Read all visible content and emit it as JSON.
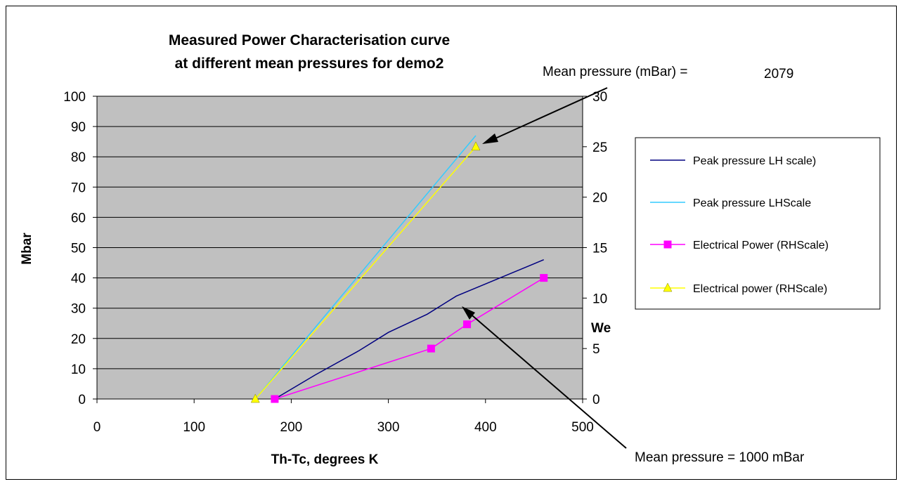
{
  "chart_data": {
    "type": "line",
    "title_lines": [
      "Measured Power Characterisation curve",
      "at different mean pressures for demo2"
    ],
    "xlabel": "Th-Tc, degrees K",
    "ylabel": "Mbar",
    "y2label": "We",
    "xlim": [
      0,
      500
    ],
    "ylim": [
      0,
      100
    ],
    "y2lim": [
      0,
      30
    ],
    "x_ticks": [
      "0",
      "100",
      "200",
      "300",
      "400",
      "500"
    ],
    "y_ticks": [
      "0",
      "10",
      "20",
      "30",
      "40",
      "50",
      "60",
      "70",
      "80",
      "90",
      "100"
    ],
    "y2_ticks": [
      "0",
      "5",
      "10",
      "15",
      "20",
      "25",
      "30"
    ],
    "grid": "horizontal",
    "plot_background": "#c0c0c0",
    "legend_position": "right",
    "series": [
      {
        "name": "Peak pressure LH scale)",
        "axis": "left",
        "color": "#000080",
        "marker": "none",
        "x": [
          183,
          225,
          270,
          300,
          340,
          355,
          370,
          400,
          430,
          460
        ],
        "y": [
          0,
          8,
          16,
          22,
          28,
          31,
          34,
          38,
          42,
          46
        ]
      },
      {
        "name": "Peak pressure LHScale",
        "axis": "left",
        "color": "#33ccff",
        "marker": "none",
        "x": [
          163,
          390
        ],
        "y": [
          0,
          87
        ]
      },
      {
        "name": "Electrical Power (RHScale)",
        "axis": "right",
        "color": "#ff00ff",
        "marker": "square",
        "x": [
          183,
          344,
          381,
          460
        ],
        "y": [
          0,
          5,
          7.4,
          12
        ]
      },
      {
        "name": "Electrical power (RHScale)",
        "axis": "right",
        "color": "#ffff00",
        "marker": "triangle",
        "x": [
          163,
          390
        ],
        "y": [
          0,
          25
        ]
      }
    ],
    "annotations": [
      {
        "text": "Mean pressure (mBar) =",
        "value": "2079"
      },
      {
        "text": "Mean pressure = 1000 mBar"
      }
    ]
  }
}
